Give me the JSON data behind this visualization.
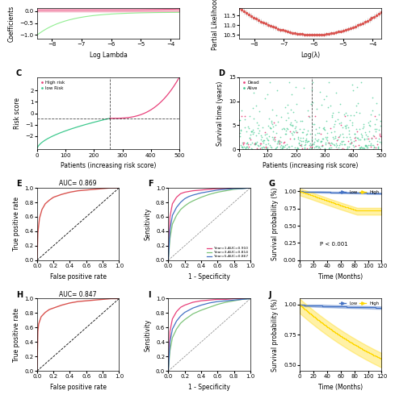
{
  "panels": {
    "A": {
      "xlabel": "Log Lambda",
      "ylabel": "Coefficients",
      "xlim": [
        -8.5,
        -3.7
      ],
      "ylim_visible": [
        -1.1,
        0.1
      ],
      "pink_color": "#F4A0B8",
      "green_color": "#90EE90"
    },
    "B": {
      "xlabel": "Log(λ)",
      "ylabel": "Partial Likelihood",
      "xlim": [
        -8.5,
        -3.7
      ],
      "ylim": [
        10.4,
        11.8
      ],
      "dot_color": "#D9534F",
      "err_color": "#BBBBBB"
    },
    "C": {
      "xlabel": "Patients (increasing risk score)",
      "ylabel": "Risk score",
      "xlim": [
        0,
        500
      ],
      "ylim": [
        -3.2,
        3.2
      ],
      "cutoff_x": 255,
      "cutoff_y": -0.45,
      "high_risk_color": "#E8407A",
      "low_risk_color": "#3EC98E",
      "legend_high": "High risk",
      "legend_low": "low Risk"
    },
    "D": {
      "xlabel": "Patients (increasing risk score)",
      "ylabel": "Survival time (years)",
      "xlim": [
        0,
        500
      ],
      "ylim": [
        0,
        15
      ],
      "cutoff_x": 255,
      "dead_color": "#E8407A",
      "alive_color": "#3EC98E",
      "legend_dead": "Dead",
      "legend_alive": "Alive"
    },
    "E": {
      "title": "AUC= 0.869",
      "xlabel": "False positive rate",
      "ylabel": "True positive rate",
      "curve_color": "#D9534F"
    },
    "F": {
      "xlabel": "1 - Specificity",
      "ylabel": "Sensitivity",
      "year1_color": "#E8407A",
      "year3_color": "#7DC47A",
      "year5_color": "#4472C4",
      "legend_year1": "Year=1,AUC=0.910",
      "legend_year3": "Year=3,AUC=0.814",
      "legend_year5": "Year=5,AUC=0.867"
    },
    "G": {
      "xlabel": "Time (Months)",
      "ylabel": "Survival probability (%)",
      "xlim": [
        0,
        120
      ],
      "ylim": [
        0.0,
        1.05
      ],
      "low_color": "#4472C4",
      "high_color": "#FFD700",
      "pvalue": "P < 0.001",
      "legend_low": "Low",
      "legend_high": "High"
    },
    "H": {
      "title": "AUC= 0.847",
      "xlabel": "False positive rate",
      "ylabel": "True positive rate",
      "curve_color": "#D9534F"
    },
    "I": {
      "xlabel": "1 - Specificity",
      "ylabel": "Sensitivity",
      "year1_color": "#E8407A",
      "year3_color": "#7DC47A",
      "year5_color": "#4472C4"
    },
    "J": {
      "xlabel": "Time (Months)",
      "ylabel": "Survival probability (%)",
      "xlim": [
        0,
        120
      ],
      "ylim": [
        0.45,
        1.05
      ],
      "low_color": "#4472C4",
      "high_color": "#FFD700",
      "legend_low": "Low",
      "legend_high": "High"
    }
  },
  "bg_color": "#FFFFFF",
  "axis_fontsize": 5.5,
  "tick_fontsize": 5,
  "label_fontsize": 8
}
